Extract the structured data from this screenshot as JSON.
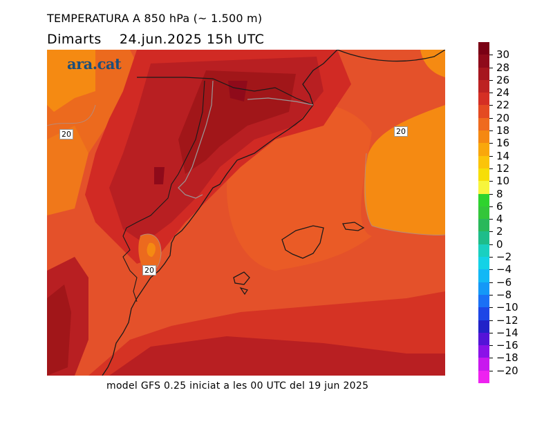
{
  "header": {
    "title": "TEMPERATURA A 850 hPa (~ 1.500 m)",
    "day": "Dimarts",
    "datetime": "24.jun.2025 15h UTC"
  },
  "footer": "model GFS 0.25 iniciat a les 00 UTC del 19 jun 2025",
  "logo": "ara.cat",
  "contour_labels": [
    "20",
    "20",
    "20"
  ],
  "legend": {
    "labels": [
      "30",
      "28",
      "26",
      "24",
      "22",
      "20",
      "18",
      "16",
      "14",
      "12",
      "10",
      "8",
      "6",
      "4",
      "2",
      "0",
      "−2",
      "−4",
      "−6",
      "−8",
      "−10",
      "−12",
      "−14",
      "−16",
      "−18",
      "−20"
    ],
    "colors": [
      "#7a0014",
      "#8f0a1a",
      "#a6161e",
      "#bd2222",
      "#d52f24",
      "#e44a22",
      "#ef6a1e",
      "#f58812",
      "#f9a70c",
      "#fbc40a",
      "#f6de08",
      "#f7f53c",
      "#2ed32e",
      "#33c63a",
      "#29b85a",
      "#1ebd8a",
      "#1ad0c0",
      "#14d2e6",
      "#12b8f5",
      "#1498f7",
      "#1a70f5",
      "#1d46e6",
      "#2222c8",
      "#5414d8",
      "#8a12e8",
      "#c818ee",
      "#ee22f0"
    ]
  },
  "map": {
    "colors": {
      "c30": "#7a0014",
      "c28": "#a11619",
      "c26": "#b81f22",
      "c24": "#d12a24",
      "c22": "#e13f24",
      "c20": "#ec5b20",
      "c18": "#f0781a",
      "c16": "#f58a12",
      "c14": "#f6a70c"
    }
  }
}
